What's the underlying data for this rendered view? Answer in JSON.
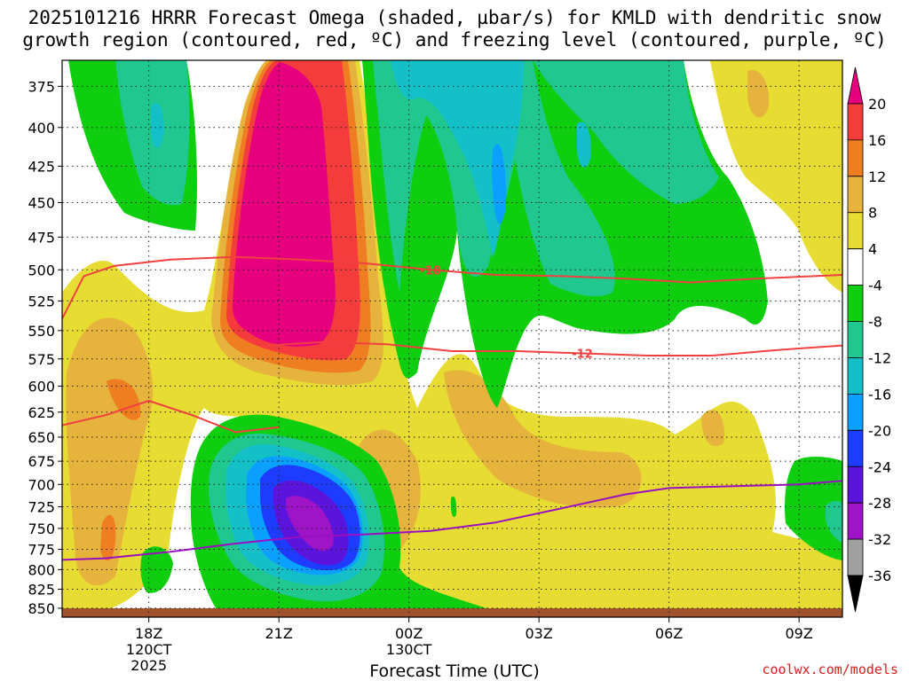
{
  "title_line1": "2025101216 HRRR Forecast Omega (shaded, µbar/s) for KMLD with dendritic snow",
  "title_line2": "growth region (contoured, red, ºC) and freezing level (contoured, purple, ºC)",
  "credit": "coolwx.com/models",
  "chart_data": {
    "type": "heatmap",
    "xlabel": "Forecast Time (UTC)",
    "x_range_hours_utc": [
      16.0,
      10.0
    ],
    "x_ticks": [
      {
        "label": "18Z",
        "sub": [
          "120CT",
          "2025"
        ]
      },
      {
        "label": "21Z",
        "sub": []
      },
      {
        "label": "00Z",
        "sub": [
          "130CT"
        ]
      },
      {
        "label": "03Z",
        "sub": []
      },
      {
        "label": "06Z",
        "sub": []
      },
      {
        "label": "09Z",
        "sub": []
      }
    ],
    "y_ticks_hpa": [
      375,
      400,
      425,
      450,
      475,
      500,
      525,
      550,
      575,
      600,
      625,
      650,
      675,
      700,
      725,
      750,
      775,
      800,
      825,
      850
    ],
    "y_range_hpa": [
      360,
      862
    ],
    "y_scale": "log-pressure (inverted)",
    "grid": true,
    "colorbar": {
      "tick_labels": [
        "20",
        "16",
        "12",
        "8",
        "4",
        "-4",
        "-8",
        "-12",
        "-16",
        "-20",
        "-24",
        "-28",
        "-32",
        "-36"
      ],
      "colors": [
        "#e6007e",
        "#f53c3c",
        "#ef7d22",
        "#e6b43c",
        "#e6dc32",
        "#ffffff",
        "#0fcd0f",
        "#20c890",
        "#14c0c8",
        "#0aa0ff",
        "#1e3cff",
        "#5a14dc",
        "#a014c8",
        "#a0a0a0",
        "#000000"
      ]
    },
    "contours": {
      "dgz_red": [
        {
          "label": "-18",
          "points": [
            [
              16.0,
              540
            ],
            [
              16.5,
              505
            ],
            [
              17.2,
              497
            ],
            [
              18.5,
              492
            ],
            [
              20.0,
              490
            ],
            [
              21.5,
              492
            ],
            [
              23.0,
              495
            ],
            [
              24.5,
              500
            ],
            [
              26.0,
              504
            ],
            [
              27.5,
              505
            ],
            [
              29.0,
              507
            ],
            [
              30.5,
              510
            ],
            [
              32.0,
              507
            ],
            [
              34.0,
              504
            ]
          ]
        },
        {
          "label": "-12",
          "points": [
            [
              20.7,
              563
            ],
            [
              22.0,
              560
            ],
            [
              23.5,
              562
            ],
            [
              25.0,
              568
            ],
            [
              26.5,
              568
            ],
            [
              28.0,
              570
            ],
            [
              29.5,
              572
            ],
            [
              31.0,
              572
            ],
            [
              32.5,
              567
            ],
            [
              34.0,
              563
            ]
          ]
        },
        {
          "label": "",
          "points": [
            [
              16.0,
              638
            ],
            [
              17.0,
              628
            ],
            [
              18.0,
              614
            ],
            [
              19.0,
              628
            ],
            [
              20.0,
              645
            ],
            [
              21.0,
              640
            ]
          ]
        }
      ],
      "freezing_level_purple": [
        {
          "label": "",
          "points": [
            [
              16.0,
              788
            ],
            [
              17.0,
              786
            ],
            [
              18.5,
              778
            ],
            [
              20.0,
              768
            ],
            [
              21.5,
              760
            ],
            [
              23.0,
              757
            ],
            [
              24.5,
              753
            ],
            [
              26.0,
              743
            ],
            [
              27.5,
              727
            ],
            [
              29.0,
              711
            ],
            [
              30.0,
              704
            ],
            [
              31.5,
              702
            ],
            [
              33.0,
              700
            ],
            [
              34.0,
              696
            ]
          ]
        }
      ]
    }
  }
}
